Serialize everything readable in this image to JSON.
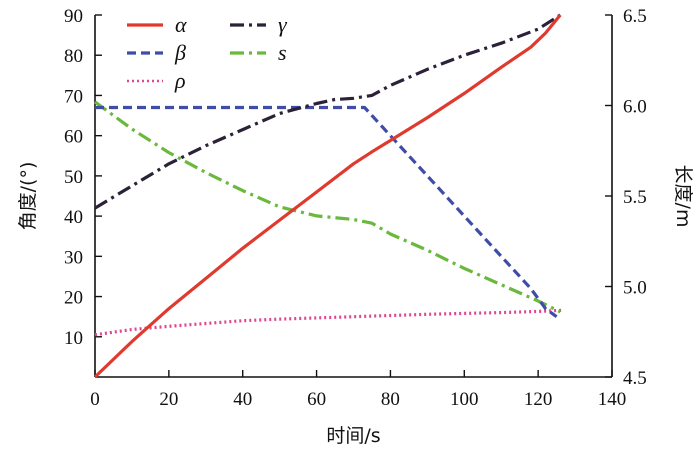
{
  "chart_data": {
    "type": "line",
    "xlabel": "时间/s",
    "ylabel_left": "角度/(°)",
    "ylabel_right": "长度/m",
    "xlim": [
      0,
      140
    ],
    "ylim_left": [
      0,
      90
    ],
    "ylim_right": [
      4.5,
      6.5
    ],
    "x_ticks": [
      "0",
      "20",
      "40",
      "60",
      "80",
      "100",
      "120",
      "140"
    ],
    "y_left_ticks": [
      "10",
      "20",
      "30",
      "40",
      "50",
      "60",
      "70",
      "80",
      "90"
    ],
    "y_right_ticks": [
      "4.5",
      "5.0",
      "5.5",
      "6.0",
      "6.5"
    ],
    "grid": false,
    "legend_position": "top-left",
    "series": [
      {
        "name": "α",
        "axis": "left",
        "color": "#e03a2f",
        "dash": "solid",
        "x": [
          0,
          10,
          20,
          30,
          40,
          50,
          60,
          70,
          75,
          80,
          90,
          100,
          110,
          118,
          122,
          126
        ],
        "y": [
          0,
          8.8,
          17,
          24.5,
          32,
          39,
          46,
          53,
          56,
          58.8,
          64.5,
          70.5,
          77,
          82,
          85.5,
          90
        ]
      },
      {
        "name": "γ",
        "axis": "left",
        "color": "#2b2138",
        "dash": "dashdot",
        "x": [
          0,
          10,
          20,
          30,
          40,
          50,
          60,
          65,
          70,
          75,
          80,
          90,
          100,
          110,
          120,
          126
        ],
        "y": [
          42,
          47.5,
          53,
          57.5,
          61.5,
          65.5,
          68,
          69,
          69.3,
          70,
          72.5,
          76.5,
          80,
          83,
          86.5,
          90
        ]
      },
      {
        "name": "β",
        "axis": "left",
        "color": "#3f4da8",
        "dash": "dashed",
        "x": [
          0,
          20,
          40,
          60,
          73,
          80,
          90,
          100,
          110,
          118,
          122,
          125
        ],
        "y": [
          67,
          67,
          67,
          67,
          67,
          60,
          50,
          40,
          30,
          22,
          17,
          15
        ]
      },
      {
        "name": "s",
        "axis": "right",
        "color": "#6ab83c",
        "dash": "dashdot",
        "x": [
          0,
          10,
          20,
          30,
          40,
          50,
          60,
          70,
          75,
          80,
          90,
          100,
          110,
          120,
          126
        ],
        "y": [
          6.02,
          5.87,
          5.74,
          5.63,
          5.53,
          5.44,
          5.39,
          5.37,
          5.35,
          5.29,
          5.2,
          5.1,
          5.01,
          4.92,
          4.86
        ]
      },
      {
        "name": "ρ",
        "axis": "left",
        "color": "#e0458f",
        "dash": "dotted",
        "x": [
          0,
          10,
          20,
          30,
          40,
          50,
          60,
          70,
          80,
          90,
          100,
          110,
          120,
          127
        ],
        "y": [
          10.5,
          11.8,
          12.6,
          13.3,
          14,
          14.4,
          14.7,
          15,
          15.3,
          15.6,
          15.8,
          16,
          16.3,
          16.6
        ]
      }
    ]
  }
}
